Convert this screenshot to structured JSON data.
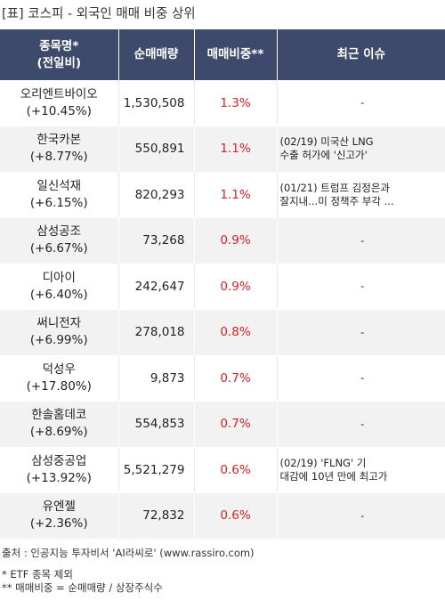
{
  "title": "[표] 코스피 - 외국인 매매 비중 상위",
  "headers": {
    "name_line1": "종목명*",
    "name_line2": "(전일비)",
    "volume": "순매매량",
    "ratio": "매매비중**",
    "issue": "최근 이슈"
  },
  "rows": [
    {
      "name": "오리엔트바이오",
      "change": "(+10.45%)",
      "volume": "1,530,508",
      "ratio": "1.3%",
      "issue1": "-",
      "issue2": ""
    },
    {
      "name": "한국카본",
      "change": "(+8.77%)",
      "volume": "550,891",
      "ratio": "1.1%",
      "issue1": "(02/19) 미국산 LNG",
      "issue2": "수출 허가에 '신고가'"
    },
    {
      "name": "일신석재",
      "change": "(+6.15%)",
      "volume": "820,293",
      "ratio": "1.1%",
      "issue1": "(01/21) 트럼프 김정은과",
      "issue2": "잘지내...미 정책주 부각 ..."
    },
    {
      "name": "삼성공조",
      "change": "(+6.67%)",
      "volume": "73,268",
      "ratio": "0.9%",
      "issue1": "-",
      "issue2": ""
    },
    {
      "name": "디아이",
      "change": "(+6.40%)",
      "volume": "242,647",
      "ratio": "0.9%",
      "issue1": "-",
      "issue2": ""
    },
    {
      "name": "써니전자",
      "change": "(+6.99%)",
      "volume": "278,018",
      "ratio": "0.8%",
      "issue1": "-",
      "issue2": ""
    },
    {
      "name": "덕성우",
      "change": "(+17.80%)",
      "volume": "9,873",
      "ratio": "0.7%",
      "issue1": "-",
      "issue2": ""
    },
    {
      "name": "한솔홈데코",
      "change": "(+8.69%)",
      "volume": "554,853",
      "ratio": "0.7%",
      "issue1": "-",
      "issue2": ""
    },
    {
      "name": "삼성중공업",
      "change": "(+13.92%)",
      "volume": "5,521,279",
      "ratio": "0.6%",
      "issue1": "(02/19) 'FLNG' 기",
      "issue2": "대감에 10년 만에 최고가"
    },
    {
      "name": "유엔젤",
      "change": "(+2.36%)",
      "volume": "72,832",
      "ratio": "0.6%",
      "issue1": "-",
      "issue2": ""
    }
  ],
  "footer": {
    "source": "출처 : 인공지능 투자비서 'AI라씨로' (www.rassiro.com)",
    "note1": "* ETF 종목 제외",
    "note2": "** 매매비중 = 순매매량 / 상장주식수"
  },
  "colors": {
    "header_bg": "#3d4a6b",
    "ratio_text": "#e02020",
    "row_alt_bg": "#f2f2f2"
  }
}
